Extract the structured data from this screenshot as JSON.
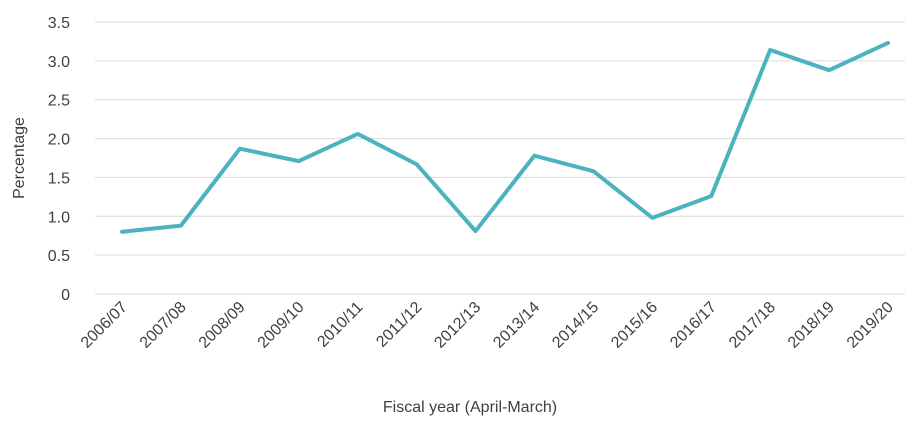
{
  "chart_data": {
    "type": "line",
    "xlabel": "Fiscal year (April-March)",
    "ylabel": "Percentage",
    "categories": [
      "2006/07",
      "2007/08",
      "2008/09",
      "2009/10",
      "2010/11",
      "2011/12",
      "2012/13",
      "2013/14",
      "2014/15",
      "2015/16",
      "2016/17",
      "2017/18",
      "2018/19",
      "2019/20"
    ],
    "values": [
      0.8,
      0.88,
      1.87,
      1.71,
      2.06,
      1.67,
      0.81,
      1.78,
      1.58,
      0.98,
      1.26,
      3.14,
      2.88,
      3.23
    ],
    "color": "#4bb3bf",
    "ylim": [
      0,
      3.5
    ],
    "yticks": [
      0,
      0.5,
      {
        "value": 1,
        "label": "1.0"
      },
      1.5,
      {
        "value": 2,
        "label": "2.0"
      },
      2.5,
      {
        "value": 3,
        "label": "3.0"
      },
      3.5
    ],
    "grid": true
  }
}
